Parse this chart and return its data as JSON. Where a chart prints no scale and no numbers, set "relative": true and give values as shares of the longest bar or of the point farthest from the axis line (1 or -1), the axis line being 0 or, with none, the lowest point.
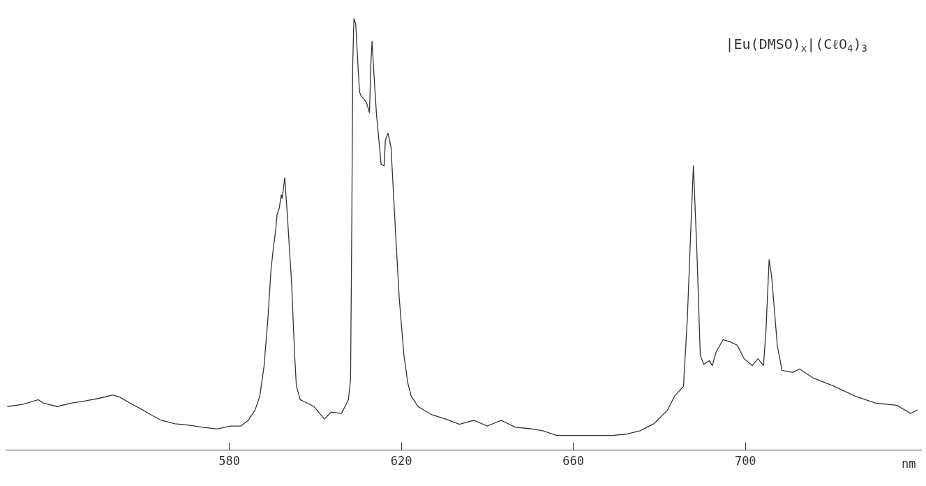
{
  "chart_data": {
    "type": "line",
    "title": "|Eu(DMSO)$_{x}$|(CℓO$_{4}$)$_{3}$",
    "xlabel": "nm",
    "relative": true,
    "marker": "none",
    "line_style": "solid",
    "xlim": [
      528,
      741
    ],
    "xticks": [
      580,
      620,
      660,
      700
    ],
    "series": [
      {
        "color": "#333333",
        "x": [
          528.4,
          531.9,
          535.6,
          536.8,
          540.0,
          543.2,
          546.5,
          549.7,
          552.9,
          554.5,
          556.9,
          559.4,
          561.8,
          564.2,
          567.4,
          570.6,
          573.9,
          577.1,
          580.3,
          582.7,
          584.4,
          586.0,
          587.1,
          588.1,
          589.0,
          589.7,
          590.3,
          590.8,
          591.1,
          591.6,
          592.1,
          592.3,
          592.9,
          593.5,
          594.5,
          595.2,
          595.6,
          596.5,
          598.1,
          599.7,
          601.0,
          602.1,
          603.7,
          606.1,
          607.7,
          608.2,
          608.5,
          608.7,
          608.9,
          609.0,
          609.4,
          610.0,
          610.3,
          610.6,
          611.3,
          611.9,
          612.6,
          612.9,
          613.2,
          613.5,
          614.2,
          615.3,
          616.0,
          616.3,
          616.9,
          617.6,
          618.7,
          619.5,
          620.6,
          621.5,
          622.3,
          623.9,
          627.1,
          630.3,
          633.5,
          636.8,
          640.0,
          643.2,
          646.5,
          649.7,
          652.9,
          656.1,
          659.4,
          662.6,
          665.8,
          669.0,
          672.3,
          675.5,
          678.7,
          681.9,
          683.5,
          685.6,
          686.5,
          687.3,
          687.9,
          688.7,
          689.5,
          690.3,
          691.6,
          692.3,
          693.2,
          694.8,
          696.5,
          698.1,
          699.7,
          701.6,
          702.9,
          704.2,
          704.8,
          705.5,
          706.1,
          707.4,
          708.5,
          711.0,
          712.6,
          715.8,
          720.6,
          725.5,
          730.3,
          735.2,
          738.4,
          740.0
        ],
        "values": [
          0.1,
          0.105,
          0.116,
          0.108,
          0.1,
          0.108,
          0.113,
          0.119,
          0.127,
          0.122,
          0.108,
          0.095,
          0.081,
          0.068,
          0.06,
          0.057,
          0.052,
          0.048,
          0.055,
          0.055,
          0.068,
          0.092,
          0.124,
          0.195,
          0.306,
          0.417,
          0.472,
          0.509,
          0.544,
          0.559,
          0.591,
          0.582,
          0.631,
          0.544,
          0.385,
          0.219,
          0.147,
          0.116,
          0.108,
          0.1,
          0.084,
          0.071,
          0.087,
          0.084,
          0.116,
          0.163,
          0.544,
          0.892,
          0.971,
          1,
          0.987,
          0.876,
          0.829,
          0.821,
          0.813,
          0.805,
          0.781,
          0.892,
          0.948,
          0.892,
          0.781,
          0.662,
          0.658,
          0.718,
          0.734,
          0.702,
          0.496,
          0.353,
          0.219,
          0.155,
          0.124,
          0.1,
          0.081,
          0.071,
          0.059,
          0.068,
          0.055,
          0.068,
          0.052,
          0.049,
          0.044,
          0.033,
          0.033,
          0.033,
          0.033,
          0.033,
          0.036,
          0.044,
          0.06,
          0.092,
          0.124,
          0.147,
          0.306,
          0.512,
          0.659,
          0.464,
          0.219,
          0.198,
          0.206,
          0.195,
          0.227,
          0.255,
          0.25,
          0.242,
          0.211,
          0.195,
          0.211,
          0.195,
          0.282,
          0.441,
          0.401,
          0.242,
          0.184,
          0.179,
          0.187,
          0.166,
          0.147,
          0.124,
          0.108,
          0.103,
          0.084,
          0.092
        ]
      }
    ]
  }
}
